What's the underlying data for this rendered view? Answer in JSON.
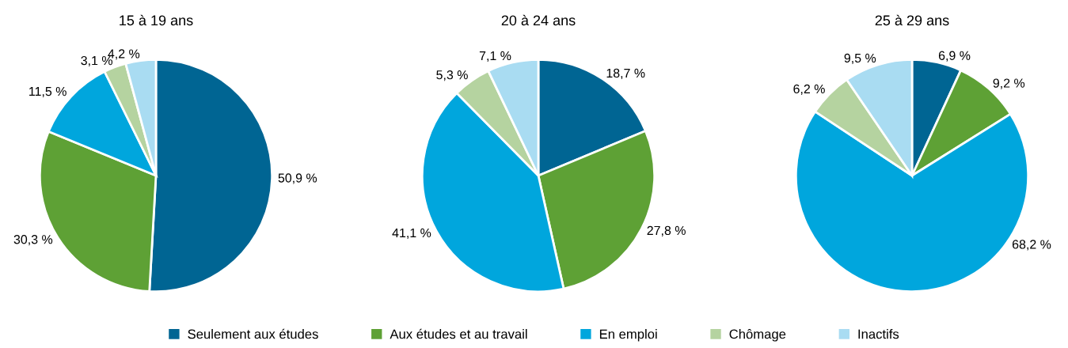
{
  "chart_data": [
    {
      "type": "pie",
      "title": "15 à 19 ans",
      "categories": [
        "Seulement aux études",
        "Aux études et au travail",
        "En emploi",
        "Chômage",
        "Inactifs"
      ],
      "values": [
        50.9,
        30.3,
        11.5,
        3.1,
        4.2
      ],
      "value_labels": [
        "50,9 %",
        "30,3 %",
        "11,5 %",
        "3,1 %",
        "4,2 %"
      ],
      "colors": [
        "#006593",
        "#5ea135",
        "#00a6dd",
        "#b5d3a0",
        "#a9dcf2"
      ],
      "legend": "bottom"
    },
    {
      "type": "pie",
      "title": "20 à 24 ans",
      "categories": [
        null,
        null,
        null,
        null,
        null
      ],
      "values": [
        18.7,
        27.8,
        41.1,
        5.3,
        7.1
      ],
      "value_labels": [
        "18,7 %",
        "27,8 %",
        "41,1 %",
        "5,3 %",
        "7,1 %"
      ],
      "colors": [
        "#006593",
        "#5ea135",
        "#00a6dd",
        "#b5d3a0",
        "#a9dcf2"
      ]
    },
    {
      "type": "pie",
      "title": "25 à 29 ans",
      "categories": [
        null,
        null,
        null,
        null,
        null
      ],
      "values": [
        6.9,
        9.2,
        68.2,
        6.2,
        9.5
      ],
      "value_labels": [
        "6,9 %",
        "9,2 %",
        "68,2 %",
        "6,2 %",
        "9,5 %"
      ],
      "colors": [
        "#006593",
        "#5ea135",
        "#00a6dd",
        "#b5d3a0",
        "#a9dcf2"
      ]
    }
  ]
}
